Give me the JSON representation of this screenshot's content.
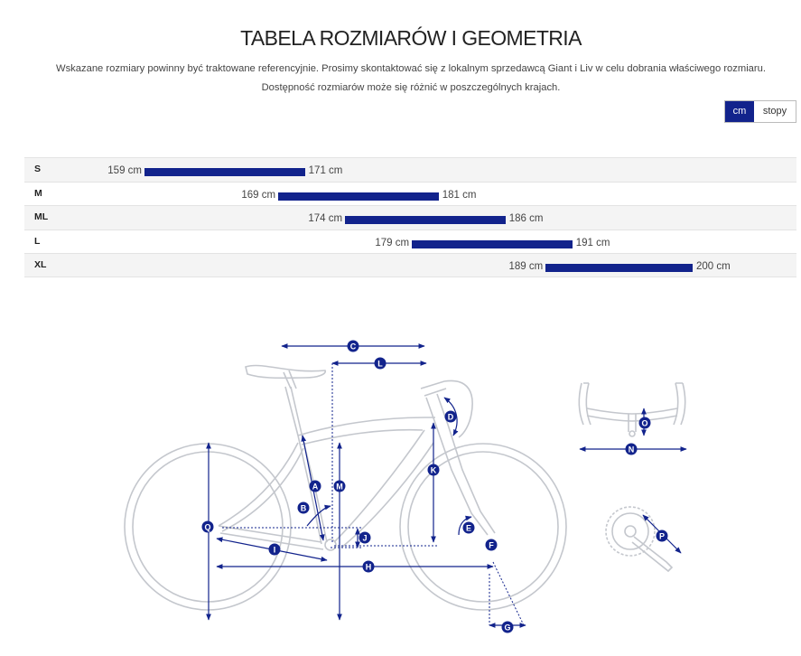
{
  "title": "TABELA ROZMIARÓW I GEOMETRIA",
  "notice": {
    "line1": "Wskazane rozmiary powinny być traktowane referencyjnie. Prosimy skontaktować się z lokalnym sprzedawcą Giant i Liv w celu dobrania właściwego rozmiaru.",
    "line2": "Dostępność rozmiarów może się różnić w poszczególnych krajach."
  },
  "unit_toggle": {
    "cm_label": "cm",
    "feet_label": "stopy",
    "selected": "cm"
  },
  "colors": {
    "accent": "#12238c",
    "row_alt": "#f4f4f4",
    "diagram_line": "#c7c9ce"
  },
  "sizes": [
    {
      "label": "S",
      "min": "159 cm",
      "max": "171 cm",
      "min_cm": 159,
      "max_cm": 171
    },
    {
      "label": "M",
      "min": "169 cm",
      "max": "181 cm",
      "min_cm": 169,
      "max_cm": 181
    },
    {
      "label": "ML",
      "min": "174 cm",
      "max": "186 cm",
      "min_cm": 174,
      "max_cm": 186
    },
    {
      "label": "L",
      "min": "179 cm",
      "max": "191 cm",
      "min_cm": 179,
      "max_cm": 191
    },
    {
      "label": "XL",
      "min": "189 cm",
      "max": "200 cm",
      "min_cm": 189,
      "max_cm": 200
    }
  ],
  "geometry_markers": [
    "A",
    "B",
    "C",
    "D",
    "E",
    "F",
    "G",
    "H",
    "I",
    "J",
    "K",
    "L",
    "M",
    "N",
    "O",
    "P",
    "Q"
  ]
}
